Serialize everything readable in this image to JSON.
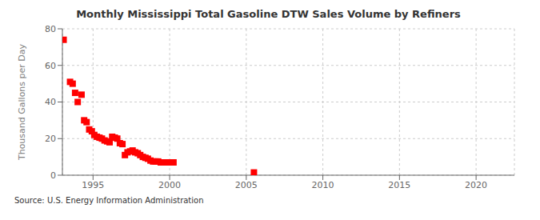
{
  "chart_data": {
    "type": "scatter",
    "title": "Monthly Mississippi Total Gasoline DTW Sales Volume by Refiners",
    "ylabel": "Thousand Gallons per Day",
    "annotation": "Source: U.S. Energy Information Administration",
    "x": [
      1993.08,
      1993.5,
      1993.67,
      1993.83,
      1994.0,
      1994.25,
      1994.42,
      1994.58,
      1994.75,
      1994.92,
      1995.08,
      1995.25,
      1995.42,
      1995.58,
      1995.75,
      1995.92,
      1996.08,
      1996.25,
      1996.42,
      1996.58,
      1996.75,
      1996.92,
      1997.08,
      1997.25,
      1997.42,
      1997.58,
      1997.75,
      1997.92,
      1998.08,
      1998.25,
      1998.42,
      1998.58,
      1998.75,
      1998.92,
      1999.08,
      1999.25,
      1999.42,
      1999.58,
      1999.75,
      1999.92,
      2000.08,
      2000.25,
      2005.5
    ],
    "values": [
      74.0,
      51.0,
      50.0,
      45.0,
      40.0,
      44.0,
      30.0,
      29.0,
      25.0,
      24.0,
      22.0,
      21.0,
      20.5,
      20.0,
      19.0,
      18.5,
      18.0,
      21.0,
      20.5,
      20.0,
      17.5,
      17.0,
      11.0,
      12.5,
      13.0,
      13.5,
      12.5,
      12.0,
      11.0,
      10.0,
      9.5,
      9.0,
      8.0,
      7.5,
      7.5,
      7.5,
      7.0,
      7.0,
      7.0,
      7.0,
      7.0,
      7.0,
      1.5
    ],
    "color": "#ff0000",
    "marker": "square",
    "xlim": [
      1993.0,
      2022.5
    ],
    "ylim": [
      0,
      80
    ],
    "xticks": [
      1995,
      2000,
      2005,
      2010,
      2015,
      2020
    ],
    "yticks": [
      0,
      20,
      40,
      60,
      80
    ],
    "grid": true
  }
}
